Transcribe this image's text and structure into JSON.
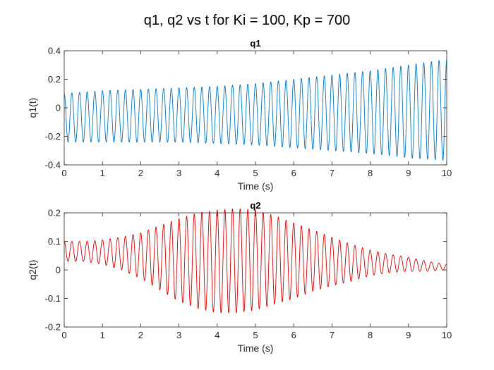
{
  "figure": {
    "title": "q1, q2 vs t for Ki = 100, Kp = 700"
  },
  "chart_data": [
    {
      "type": "line",
      "title": "q1",
      "xlabel": "Time (s)",
      "ylabel": "q1(t)",
      "xlim": [
        0,
        10
      ],
      "ylim": [
        -0.4,
        0.4
      ],
      "xticks": [
        0,
        1,
        2,
        3,
        4,
        5,
        6,
        7,
        8,
        9,
        10
      ],
      "xtick_labels": [
        "0",
        "1",
        "2",
        "3",
        "4",
        "5",
        "6",
        "7",
        "8",
        "9",
        "10"
      ],
      "yticks": [
        -0.4,
        -0.2,
        0,
        0.2,
        0.4
      ],
      "ytick_labels": [
        "-0.4",
        "-0.2",
        "0",
        "0.2",
        "0.4"
      ],
      "grid": false,
      "color": "#0072BD",
      "oscillation_frequency_hz": 5.0,
      "x": [
        0,
        1,
        2,
        3,
        4,
        5,
        6,
        7,
        8,
        9,
        10
      ],
      "upper_envelope": [
        0.1,
        0.12,
        0.13,
        0.14,
        0.15,
        0.17,
        0.2,
        0.23,
        0.26,
        0.3,
        0.34
      ],
      "lower_envelope": [
        -0.24,
        -0.24,
        -0.24,
        -0.24,
        -0.25,
        -0.26,
        -0.28,
        -0.3,
        -0.32,
        -0.35,
        -0.37
      ]
    },
    {
      "type": "line",
      "title": "q2",
      "xlabel": "Time (s)",
      "ylabel": "q2(t)",
      "xlim": [
        0,
        10
      ],
      "ylim": [
        -0.2,
        0.2
      ],
      "xticks": [
        0,
        1,
        2,
        3,
        4,
        5,
        6,
        7,
        8,
        9,
        10
      ],
      "xtick_labels": [
        "0",
        "1",
        "2",
        "3",
        "4",
        "5",
        "6",
        "7",
        "8",
        "9",
        "10"
      ],
      "yticks": [
        -0.2,
        -0.1,
        0,
        0.1,
        0.2
      ],
      "ytick_labels": [
        "-0.2",
        "-0.1",
        "0",
        "0.1",
        "0.2"
      ],
      "grid": false,
      "color": "#D40000",
      "oscillation_frequency_hz": 5.0,
      "x": [
        0,
        0.5,
        1,
        1.5,
        2,
        2.5,
        3,
        3.5,
        4,
        4.5,
        5,
        5.5,
        6,
        6.5,
        7,
        7.5,
        8,
        8.5,
        9,
        9.5,
        10
      ],
      "upper_envelope": [
        0.1,
        0.1,
        0.105,
        0.115,
        0.13,
        0.155,
        0.18,
        0.2,
        0.21,
        0.215,
        0.21,
        0.19,
        0.165,
        0.14,
        0.115,
        0.09,
        0.07,
        0.055,
        0.045,
        0.03,
        0.02
      ],
      "lower_envelope": [
        0.03,
        0.03,
        0.02,
        0.0,
        -0.03,
        -0.07,
        -0.11,
        -0.135,
        -0.15,
        -0.15,
        -0.14,
        -0.12,
        -0.1,
        -0.075,
        -0.055,
        -0.04,
        -0.02,
        -0.01,
        -0.005,
        -0.005,
        0.0
      ]
    }
  ]
}
